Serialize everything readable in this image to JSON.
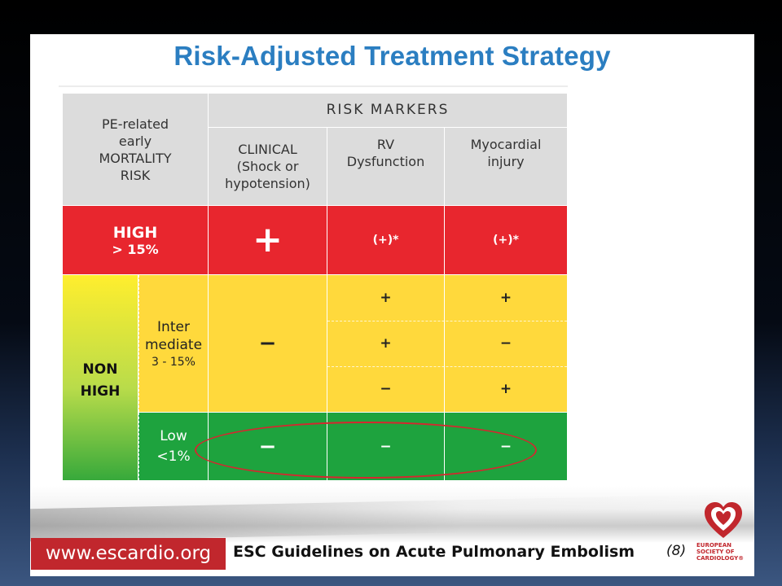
{
  "title": "Risk-Adjusted Treatment Strategy",
  "table": {
    "header_left": "PE-related early MORTALITY RISK",
    "header_markers": "RISK MARKERS",
    "col_clinical": "CLINICAL (Shock or hypotension)",
    "col_rv": "RV Dysfunction",
    "col_myo": "Myocardial injury",
    "high": {
      "label": "HIGH",
      "pct": "> 15%",
      "clinical": "+",
      "rv": "(+)*",
      "myo": "(+)*"
    },
    "non_high_label": "NON HIGH",
    "intermediate": {
      "label": "Inter mediate",
      "pct": "3 - 15%",
      "clinical": "−",
      "rows": [
        {
          "rv": "+",
          "myo": "+"
        },
        {
          "rv": "+",
          "myo": "−"
        },
        {
          "rv": "−",
          "myo": "+"
        }
      ]
    },
    "low": {
      "label": "Low",
      "pct": "<1%",
      "clinical": "−",
      "rv": "−",
      "myo": "−"
    }
  },
  "footer": {
    "url": "www.escardio.org",
    "text": "ESC Guidelines on Acute Pulmonary Embolism",
    "ref": "(8)",
    "logo_text": "EUROPEAN SOCIETY OF CARDIOLOGY®"
  },
  "colors": {
    "title": "#2b7ec1",
    "high": "#e8262e",
    "intermediate": "#ffd93c",
    "low": "#1ea33e",
    "header": "#dcdcdc",
    "highlight_ellipse": "#d5272f"
  }
}
